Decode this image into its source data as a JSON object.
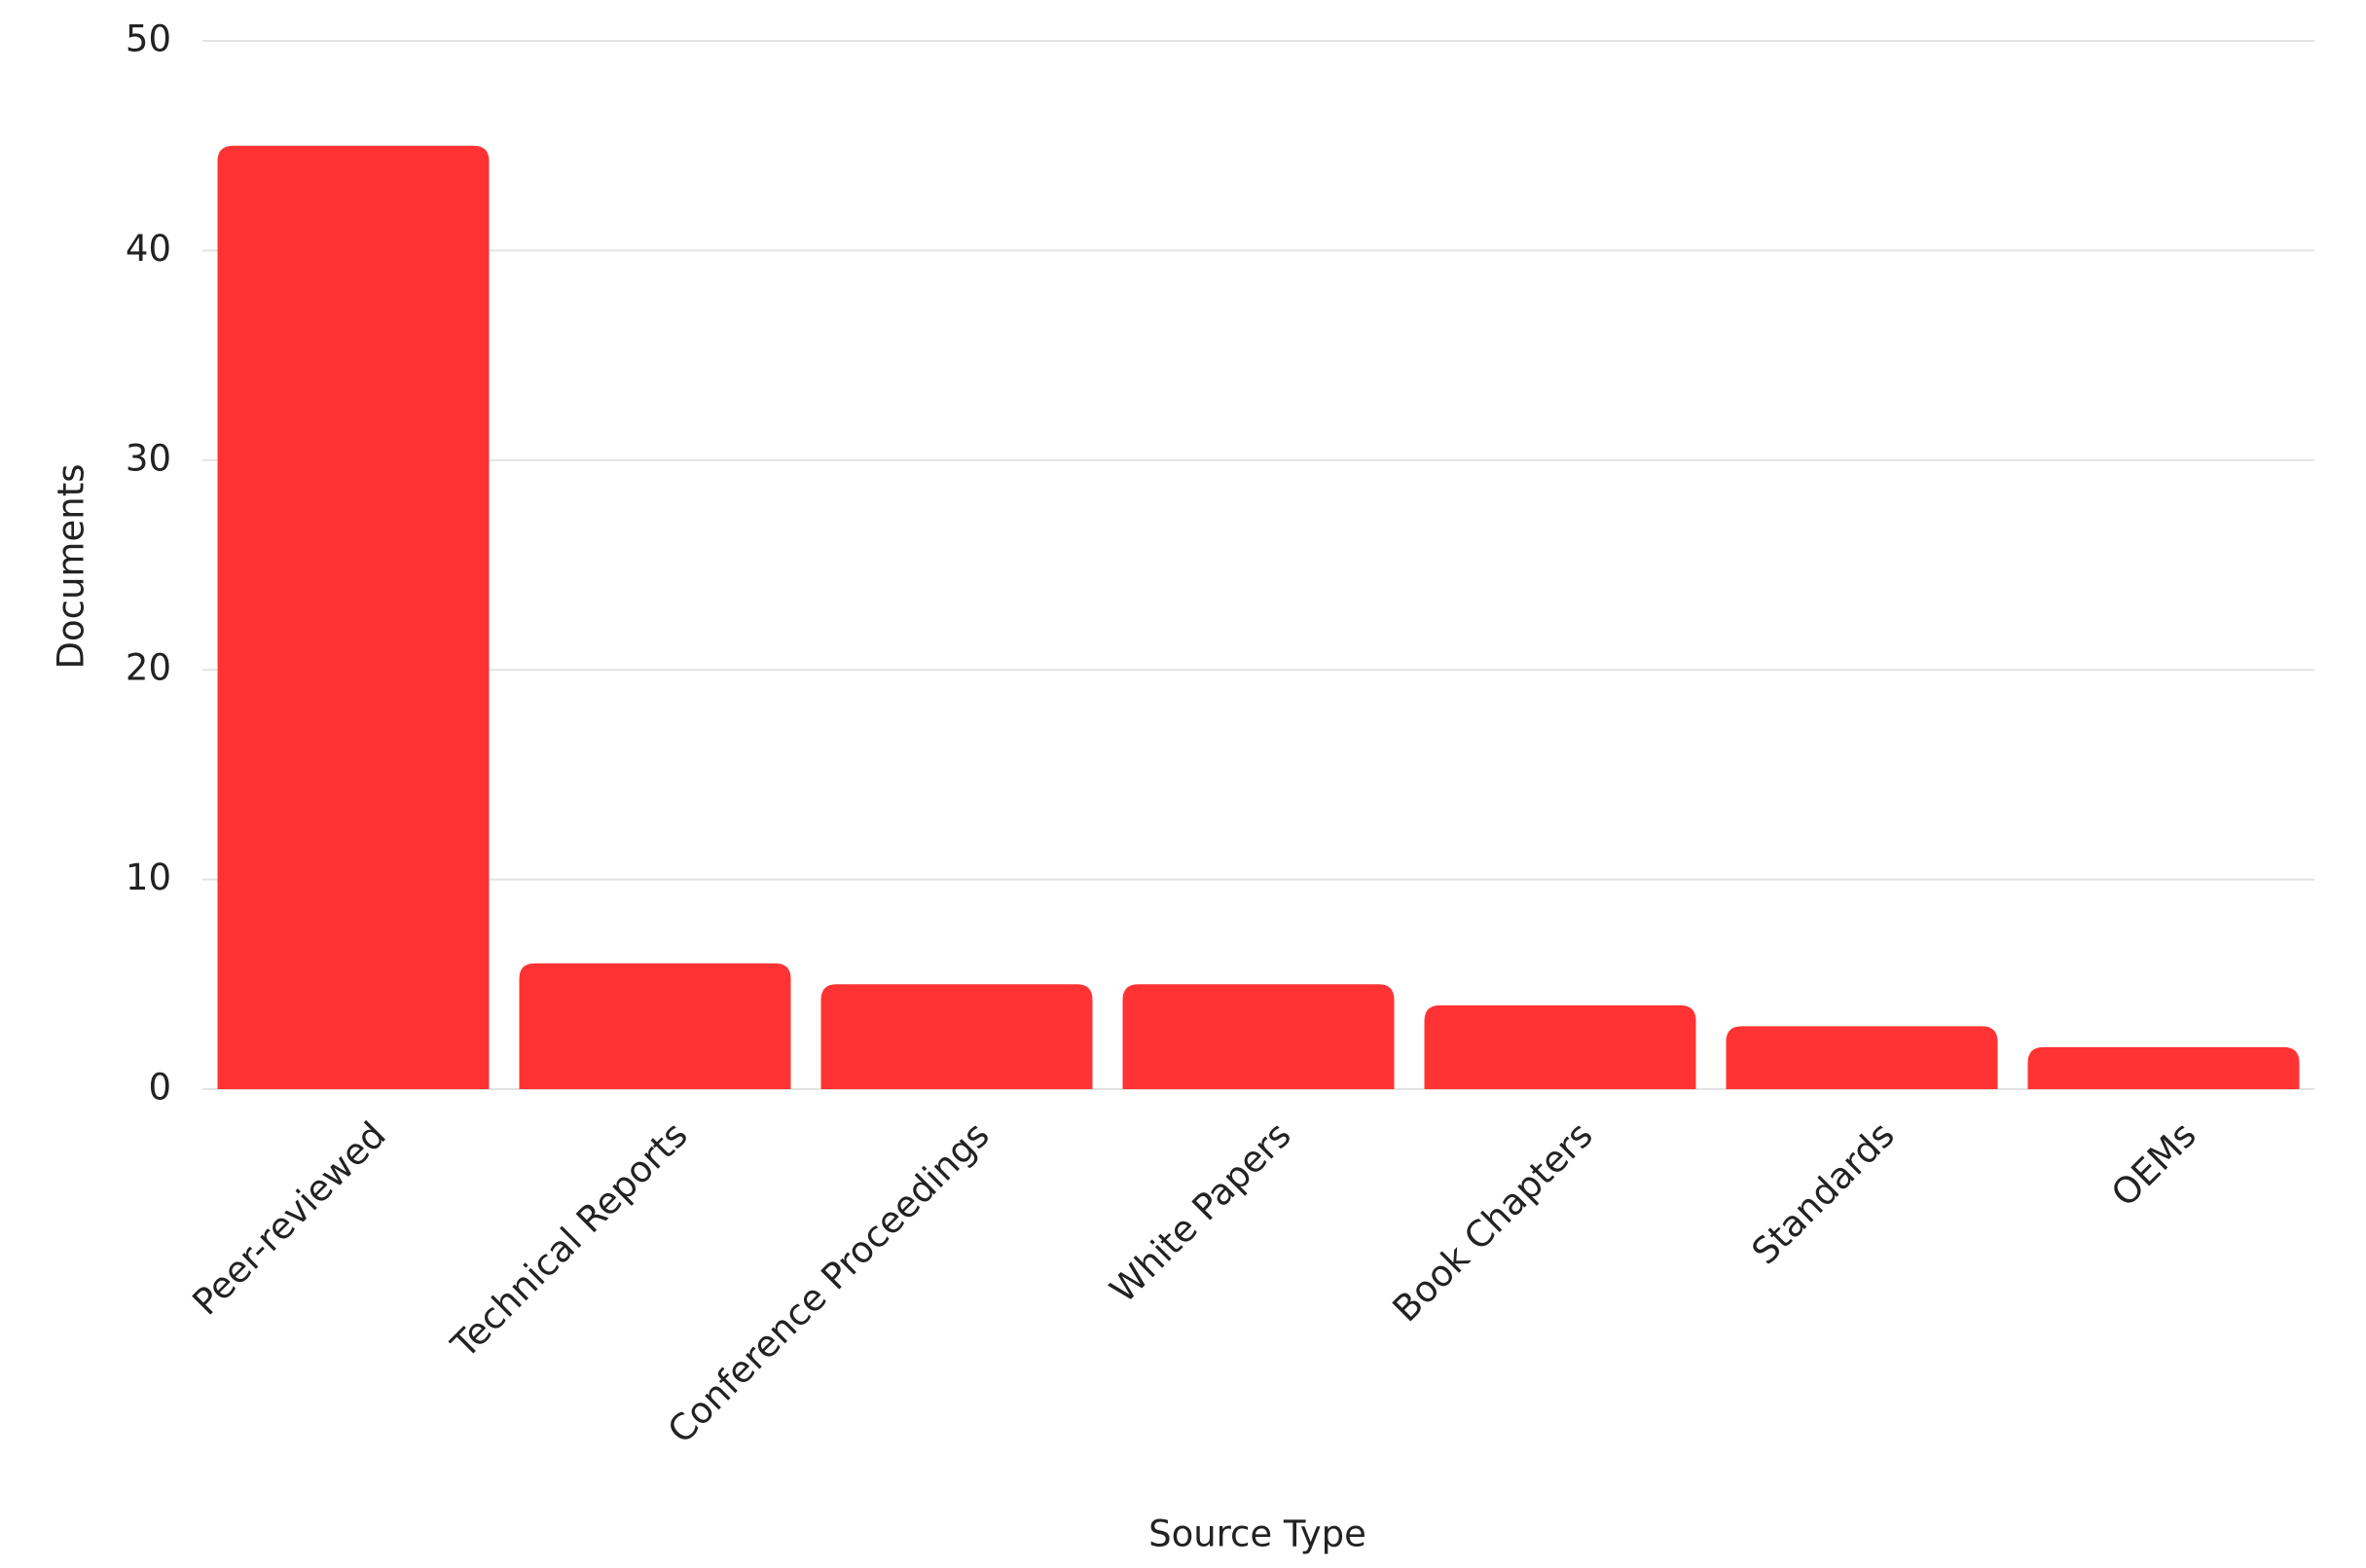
{
  "chart_data": {
    "type": "bar",
    "x_label": "Source Type",
    "y_label": "Documents",
    "categories": [
      "Peer-reviewed",
      "Technical Reports",
      "Conference Proceedings",
      "White Papers",
      "Book Chapters",
      "Standards",
      "OEMs"
    ],
    "values": [
      45,
      6,
      5,
      5,
      4,
      3,
      2
    ],
    "color": "#ff3333",
    "ylim": [
      0,
      50
    ],
    "yticks": [
      0,
      10,
      20,
      30,
      40,
      50
    ],
    "grid": true
  }
}
